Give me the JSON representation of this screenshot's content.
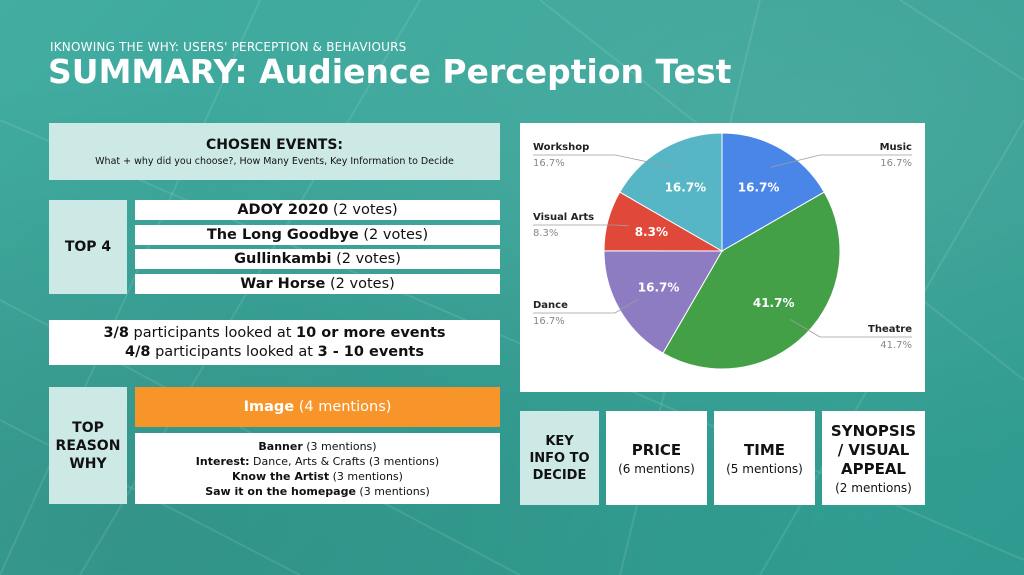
{
  "header": {
    "subtitle": "IKNOWING THE WHY: USERS' PERCEPTION & BEHAVIOURS",
    "title": "SUMMARY: Audience Perception Test"
  },
  "chosen": {
    "title": "CHOSEN EVENTS:",
    "subtitle": "What + why did you choose?, How Many Events, Key Information to Decide"
  },
  "top4": {
    "label": "TOP 4",
    "items": [
      {
        "name": "ADOY 2020",
        "votes": " (2 votes)"
      },
      {
        "name": "The Long Goodbye",
        "votes": " (2 votes)"
      },
      {
        "name": "Gullinkambi",
        "votes": " (2 votes)"
      },
      {
        "name": "War Horse",
        "votes": " (2 votes)"
      }
    ]
  },
  "participants": [
    {
      "lead": "3/8",
      "mid": " participants looked at ",
      "tail": "10 or more events"
    },
    {
      "lead": "4/8",
      "mid": " participants looked at ",
      "tail": "3 - 10 events"
    }
  ],
  "reasons": {
    "label_lines": [
      "TOP",
      "REASON",
      "WHY"
    ],
    "main": {
      "name": "Image",
      "count": " (4 mentions)"
    },
    "others": [
      {
        "name": "Banner",
        "count": " (3 mentions)"
      },
      {
        "name": "Interest:",
        "count": " Dance, Arts & Crafts (3 mentions)"
      },
      {
        "name": "Know the Artist",
        "count": " (3 mentions)"
      },
      {
        "name": "Saw it on the homepage",
        "count": " (3 mentions)"
      }
    ]
  },
  "key_info": {
    "label_lines": [
      "KEY",
      "INFO TO",
      "DECIDE"
    ],
    "items": [
      {
        "title_lines": [
          "PRICE"
        ],
        "sub": "(6 mentions)"
      },
      {
        "title_lines": [
          "TIME"
        ],
        "sub": "(5 mentions)"
      },
      {
        "title_lines": [
          "SYNOPSIS",
          "/ VISUAL",
          "APPEAL"
        ],
        "sub": "(2 mentions)"
      }
    ]
  },
  "chart_data": {
    "type": "pie",
    "slices": [
      {
        "label": "Music",
        "value": 16.7,
        "pct_label": "16.7%",
        "color": "#4a86e8"
      },
      {
        "label": "Theatre",
        "value": 41.7,
        "pct_label": "41.7%",
        "color": "#43a047"
      },
      {
        "label": "Dance",
        "value": 16.7,
        "pct_label": "16.7%",
        "color": "#8e7cc3"
      },
      {
        "label": "Visual Arts",
        "value": 8.3,
        "pct_label": "8.3%",
        "color": "#e0493a"
      },
      {
        "label": "Workshop",
        "value": 16.7,
        "pct_label": "16.7%",
        "color": "#56b6c6"
      }
    ],
    "start_angle_deg": 0,
    "direction": "clockwise"
  }
}
